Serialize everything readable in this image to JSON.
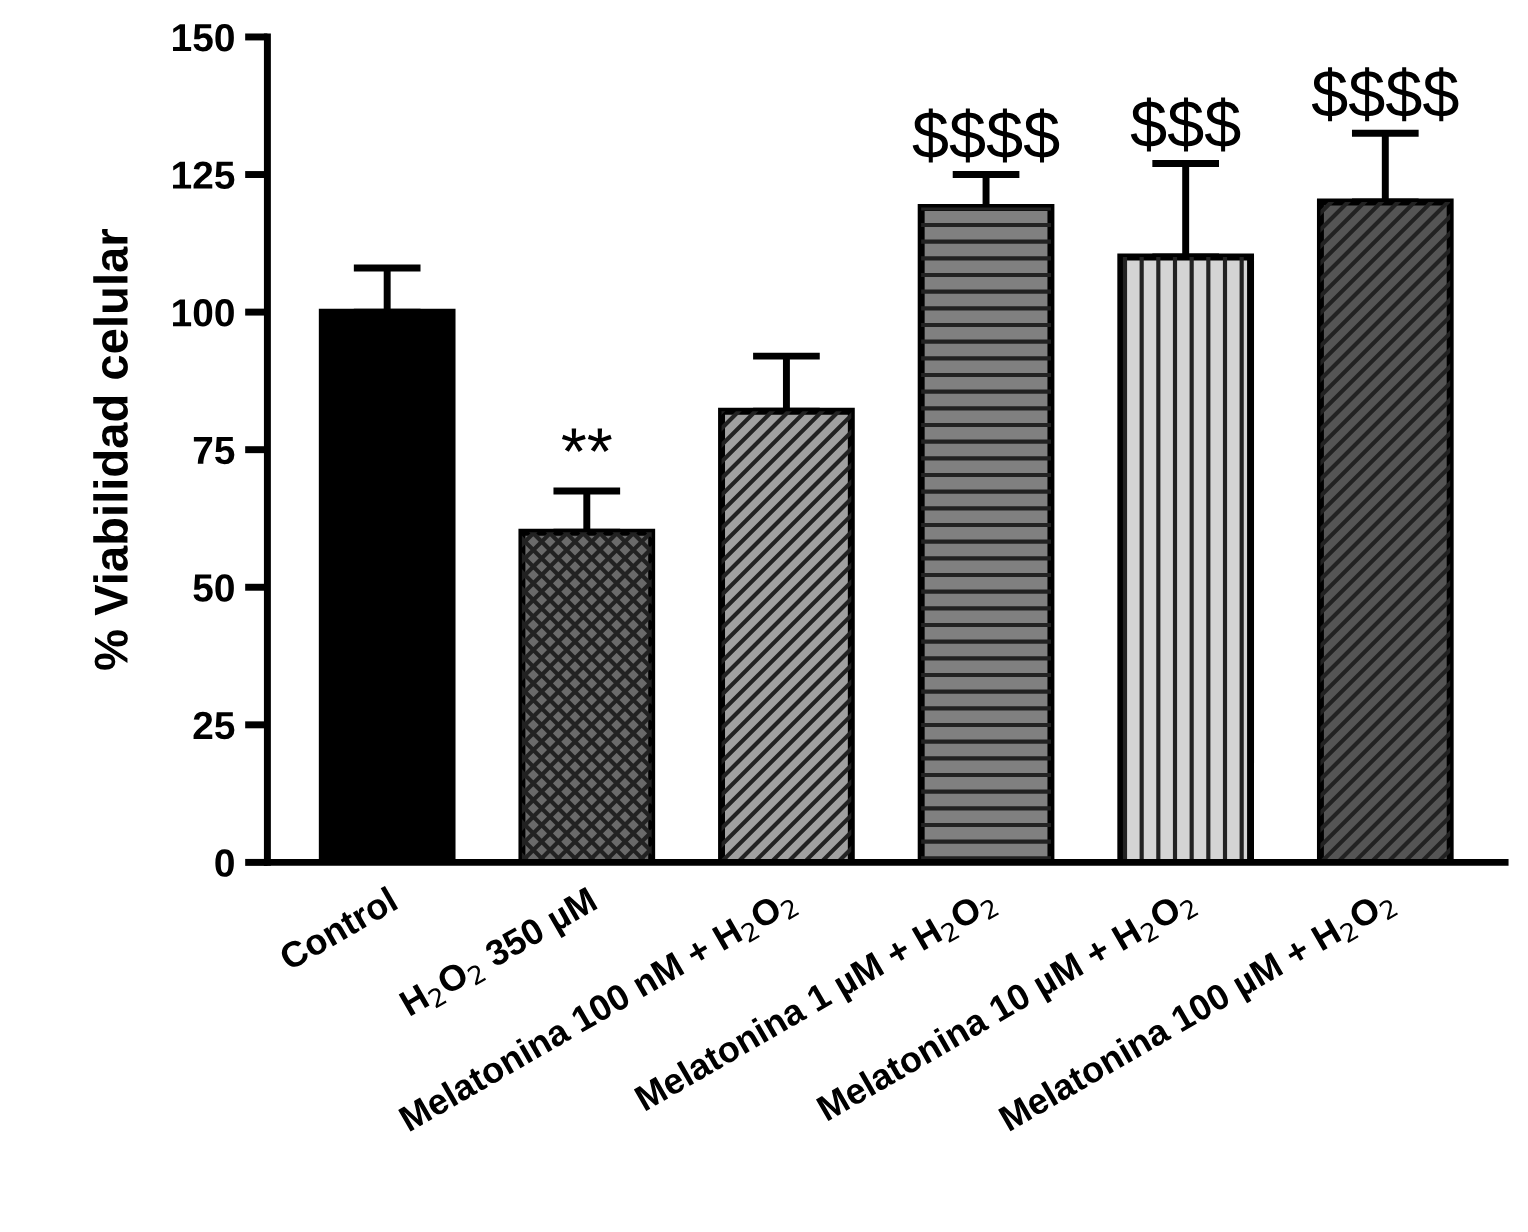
{
  "chart_data": {
    "type": "bar",
    "ylabel": "% Viabilidad celular",
    "categories": [
      "Control",
      "H$_{2}$O$_{2}$ 350 µM",
      "Melatonina 100 nM + H$_{2}$O$_{2}$",
      "Melatonina 1 µM + H$_{2}$O$_{2}$",
      "Melatonina 10 µM + H$_{2}$O$_{2}$",
      "Melatonina 100 µM + H$_{2}$O$_{2}$"
    ],
    "values": [
      100,
      60,
      82,
      119,
      110,
      120
    ],
    "errors": [
      [
        100,
        108
      ],
      [
        60,
        67.5
      ],
      [
        82,
        92
      ],
      [
        119,
        125
      ],
      [
        110,
        127
      ],
      [
        120,
        132.5
      ]
    ],
    "colors": [
      "#000000",
      "#6a6a6a",
      "#a0a0a0",
      "#808080",
      "#d4d4d4",
      "#555555"
    ],
    "ylim": [
      0,
      150
    ],
    "yticks": [
      0,
      25,
      50,
      75,
      100,
      125,
      150
    ],
    "grid": false,
    "legend": false,
    "annotations": [
      "**",
      "$$$$",
      "$$$",
      "$$$$"
    ]
  }
}
